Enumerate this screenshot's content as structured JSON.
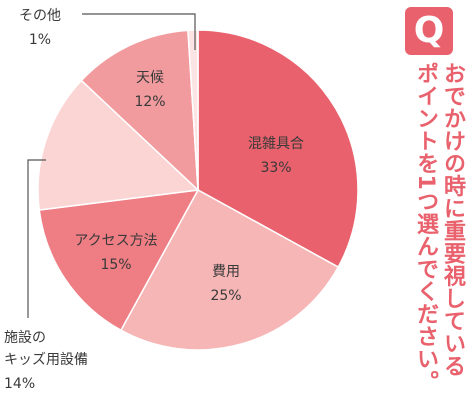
{
  "question": {
    "badge": "Q",
    "text": "おでかけの時に重要視しているポイントを1つ選んでください。",
    "color": "#e8616c"
  },
  "chart_data": {
    "type": "pie",
    "start_angle_deg": 0,
    "direction": "clockwise",
    "categories": [
      "混雑具合",
      "費用",
      "アクセス方法",
      "施設のキッズ用設備",
      "天候",
      "その他"
    ],
    "values": [
      33,
      25,
      15,
      14,
      12,
      1
    ],
    "labels": [
      {
        "name": "混雑具合",
        "value": "33%"
      },
      {
        "name": "費用",
        "value": "25%"
      },
      {
        "name": "アクセス方法",
        "value": "15%"
      },
      {
        "name_lines": [
          "施設の",
          "キッズ用設備"
        ],
        "value": "14%"
      },
      {
        "name": "天候",
        "value": "12%"
      },
      {
        "name": "その他",
        "value": "1%"
      }
    ],
    "colors": [
      "#e8616c",
      "#f7b6b6",
      "#ee7d84",
      "#fad5d4",
      "#f29b9e",
      "#fbe4e3"
    ]
  }
}
